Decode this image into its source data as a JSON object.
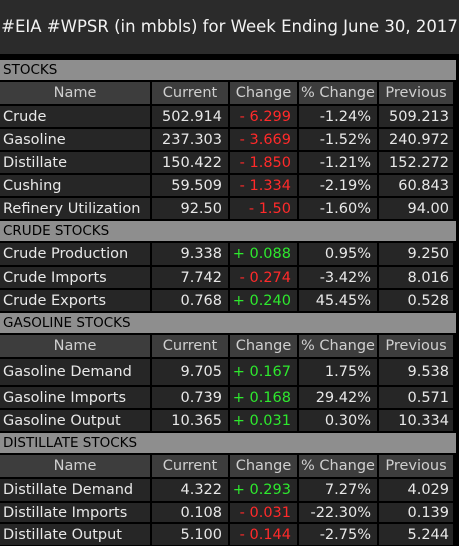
{
  "title": "#EIA #WPSR (in mbbls) for Week Ending June 30, 2017",
  "colors": {
    "positive": "#2ee82e",
    "negative": "#ff2a2a",
    "section_bar": "#8e8e8e"
  },
  "columns": {
    "name": "Name",
    "current": "Current",
    "change": "Change",
    "pct_change": "% Change",
    "previous": "Previous"
  },
  "stocks": {
    "header": "STOCKS",
    "rows": [
      {
        "name": "Crude",
        "current": "502.914",
        "change": "- 6.299",
        "pct_change": "-1.24%",
        "previous": "509.213"
      },
      {
        "name": "Gasoline",
        "current": "237.303",
        "change": "- 3.669",
        "pct_change": "-1.52%",
        "previous": "240.972"
      },
      {
        "name": "Distillate",
        "current": "150.422",
        "change": "- 1.850",
        "pct_change": "-1.21%",
        "previous": "152.272"
      },
      {
        "name": "Cushing",
        "current": "59.509",
        "change": "- 1.334",
        "pct_change": "-2.19%",
        "previous": "60.843"
      },
      {
        "name": "Refinery Utilization",
        "current": "92.50",
        "change": "- 1.50",
        "pct_change": "-1.60%",
        "previous": "94.00"
      }
    ]
  },
  "crude_stocks": {
    "header": "CRUDE STOCKS",
    "rows": [
      {
        "name": "Crude Production",
        "current": "9.338",
        "change": "+ 0.088",
        "pct_change": "0.95%",
        "previous": "9.250"
      },
      {
        "name": "Crude Imports",
        "current": "7.742",
        "change": "- 0.274",
        "pct_change": "-3.42%",
        "previous": "8.016"
      },
      {
        "name": "Crude Exports",
        "current": "0.768",
        "change": "+ 0.240",
        "pct_change": "45.45%",
        "previous": "0.528"
      }
    ]
  },
  "gasoline_stocks": {
    "header": "GASOLINE STOCKS",
    "rows": [
      {
        "name": "Gasoline Demand",
        "current": "9.705",
        "change": "+ 0.167",
        "pct_change": "1.75%",
        "previous": "9.538"
      },
      {
        "name": "Gasoline Imports",
        "current": "0.739",
        "change": "+ 0.168",
        "pct_change": "29.42%",
        "previous": "0.571"
      },
      {
        "name": "Gasoline Output",
        "current": "10.365",
        "change": "+ 0.031",
        "pct_change": "0.30%",
        "previous": "10.334"
      }
    ]
  },
  "distillate_stocks": {
    "header": "DISTILLATE STOCKS",
    "rows": [
      {
        "name": "Distillate Demand",
        "current": "4.322",
        "change": "+ 0.293",
        "pct_change": "7.27%",
        "previous": "4.029"
      },
      {
        "name": "Distillate Imports",
        "current": "0.108",
        "change": "- 0.031",
        "pct_change": "-22.30%",
        "previous": "0.139"
      },
      {
        "name": "Distillate Output",
        "current": "5.100",
        "change": "- 0.144",
        "pct_change": "-2.75%",
        "previous": "5.244"
      }
    ]
  }
}
